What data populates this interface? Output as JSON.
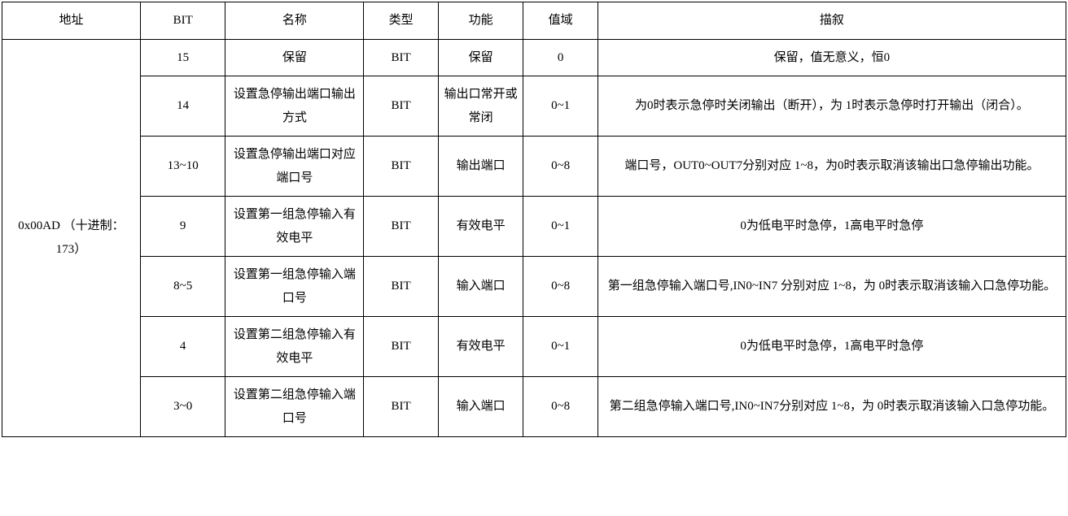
{
  "table": {
    "headers": {
      "address": "地址",
      "bit": "BIT",
      "name": "名称",
      "type": "类型",
      "function": "功能",
      "range": "值域",
      "desc": "描叙"
    },
    "address_cell": "0x00AD （十进制：173）",
    "rows": [
      {
        "bit": "15",
        "name": "保留",
        "type": "BIT",
        "function": "保留",
        "range": "0",
        "desc": "保留，值无意义，恒0"
      },
      {
        "bit": "14",
        "name": "设置急停输出端口输出方式",
        "type": "BIT",
        "function": "输出口常开或常闭",
        "range": "0~1",
        "desc": "为0时表示急停时关闭输出（断开），为 1时表示急停时打开输出（闭合）。"
      },
      {
        "bit": "13~10",
        "name": "设置急停输出端口对应端口号",
        "type": "BIT",
        "function": "输出端口",
        "range": "0~8",
        "desc": "端口号，OUT0~OUT7分别对应 1~8，为0时表示取消该输出口急停输出功能。"
      },
      {
        "bit": "9",
        "name": "设置第一组急停输入有效电平",
        "type": "BIT",
        "function": "有效电平",
        "range": "0~1",
        "desc": "0为低电平时急停，1高电平时急停"
      },
      {
        "bit": "8~5",
        "name": "设置第一组急停输入端口号",
        "type": "BIT",
        "function": "输入端口",
        "range": "0~8",
        "desc": "第一组急停输入端口号,IN0~IN7 分别对应 1~8，为 0时表示取消该输入口急停功能。"
      },
      {
        "bit": "4",
        "name": "设置第二组急停输入有效电平",
        "type": "BIT",
        "function": "有效电平",
        "range": "0~1",
        "desc": "0为低电平时急停，1高电平时急停"
      },
      {
        "bit": "3~0",
        "name": "设置第二组急停输入端口号",
        "type": "BIT",
        "function": "输入端口",
        "range": "0~8",
        "desc": "第二组急停输入端口号,IN0~IN7分别对应 1~8，为 0时表示取消该输入口急停功能。"
      }
    ]
  }
}
